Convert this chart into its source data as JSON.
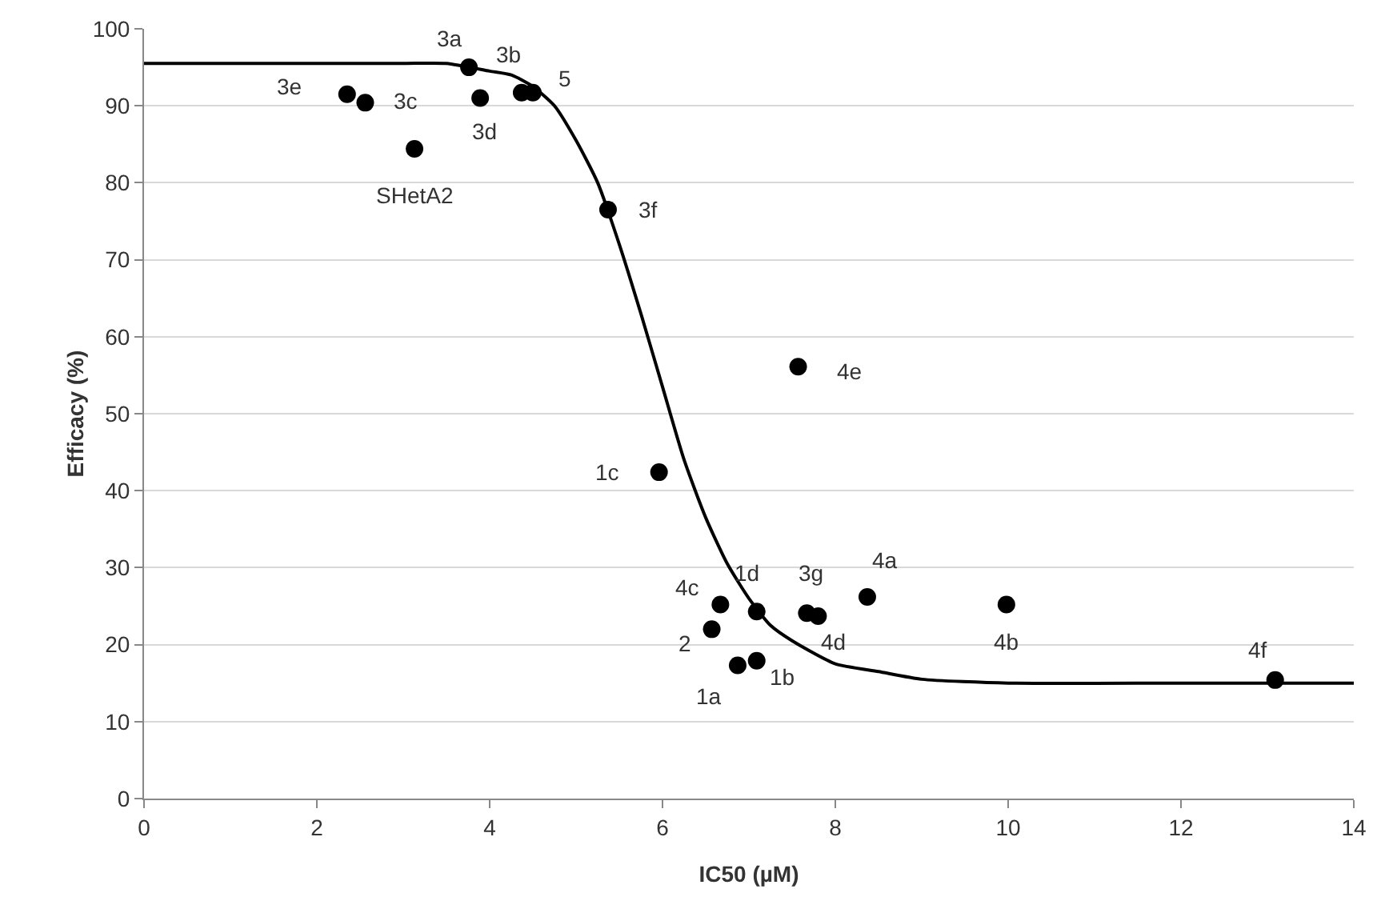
{
  "chart_data": {
    "type": "scatter",
    "xlabel": "IC50 (µM)",
    "ylabel": "Efficacy (%)",
    "xlim": [
      0,
      14
    ],
    "xticks": [
      0,
      2,
      4,
      6,
      8,
      10,
      12,
      14
    ],
    "ylim": [
      0,
      100
    ],
    "yticks": [
      0,
      10,
      20,
      30,
      40,
      50,
      60,
      70,
      80,
      90,
      100
    ],
    "grid": "y",
    "series": [
      {
        "marker": "circle",
        "color": "#000000",
        "x": [
          2.35,
          2.56,
          3.76,
          4.37,
          4.5,
          3.89,
          3.13,
          5.37,
          7.57,
          5.96,
          6.67,
          7.09,
          6.57,
          6.87,
          7.09,
          7.67,
          7.8,
          8.37,
          9.98,
          13.09
        ],
        "values": [
          91.5,
          90.4,
          95.0,
          91.7,
          91.7,
          91.0,
          84.4,
          76.5,
          56.1,
          42.4,
          25.2,
          24.3,
          22.0,
          17.3,
          17.9,
          24.1,
          23.7,
          26.2,
          25.2,
          15.4
        ]
      },
      {
        "type": "line",
        "marker": "none",
        "line_style": "solid",
        "color": "#000000",
        "x": [
          0,
          1,
          2,
          3,
          3.5,
          4,
          4.25,
          4.5,
          4.75,
          5,
          5.25,
          5.5,
          5.75,
          6,
          6.25,
          6.5,
          6.75,
          7,
          7.25,
          7.5,
          8,
          8.5,
          9,
          10,
          12,
          14
        ],
        "values": [
          95.5,
          95.5,
          95.5,
          95.5,
          95.5,
          94.5,
          94,
          92.5,
          90,
          85.5,
          80,
          72,
          63,
          53.5,
          44,
          36.5,
          30.5,
          26,
          22.5,
          20.5,
          17.5,
          16.5,
          15.5,
          15,
          15,
          15
        ]
      }
    ],
    "annotations": [
      {
        "text": "3e",
        "x": 2.35,
        "y": 91.5
      },
      {
        "text": "3c",
        "x": 2.56,
        "y": 90.4
      },
      {
        "text": "3a",
        "x": 3.76,
        "y": 95.0
      },
      {
        "text": "3b",
        "x": 4.37,
        "y": 91.7
      },
      {
        "text": "5",
        "x": 4.5,
        "y": 91.7
      },
      {
        "text": "3d",
        "x": 3.89,
        "y": 91.0
      },
      {
        "text": "SHetA2",
        "x": 3.13,
        "y": 84.4
      },
      {
        "text": "3f",
        "x": 5.37,
        "y": 76.5
      },
      {
        "text": "4e",
        "x": 7.57,
        "y": 56.1
      },
      {
        "text": "1c",
        "x": 5.96,
        "y": 42.4
      },
      {
        "text": "4c",
        "x": 6.67,
        "y": 25.2
      },
      {
        "text": "1d",
        "x": 7.09,
        "y": 24.3
      },
      {
        "text": "2",
        "x": 6.57,
        "y": 22.0
      },
      {
        "text": "1a",
        "x": 6.87,
        "y": 17.3
      },
      {
        "text": "1b",
        "x": 7.09,
        "y": 17.9
      },
      {
        "text": "3g",
        "x": 7.67,
        "y": 24.1
      },
      {
        "text": "4d",
        "x": 7.8,
        "y": 23.7
      },
      {
        "text": "4a",
        "x": 8.37,
        "y": 26.2
      },
      {
        "text": "4b",
        "x": 9.98,
        "y": 25.2
      },
      {
        "text": "4f",
        "x": 13.09,
        "y": 15.4
      }
    ]
  }
}
